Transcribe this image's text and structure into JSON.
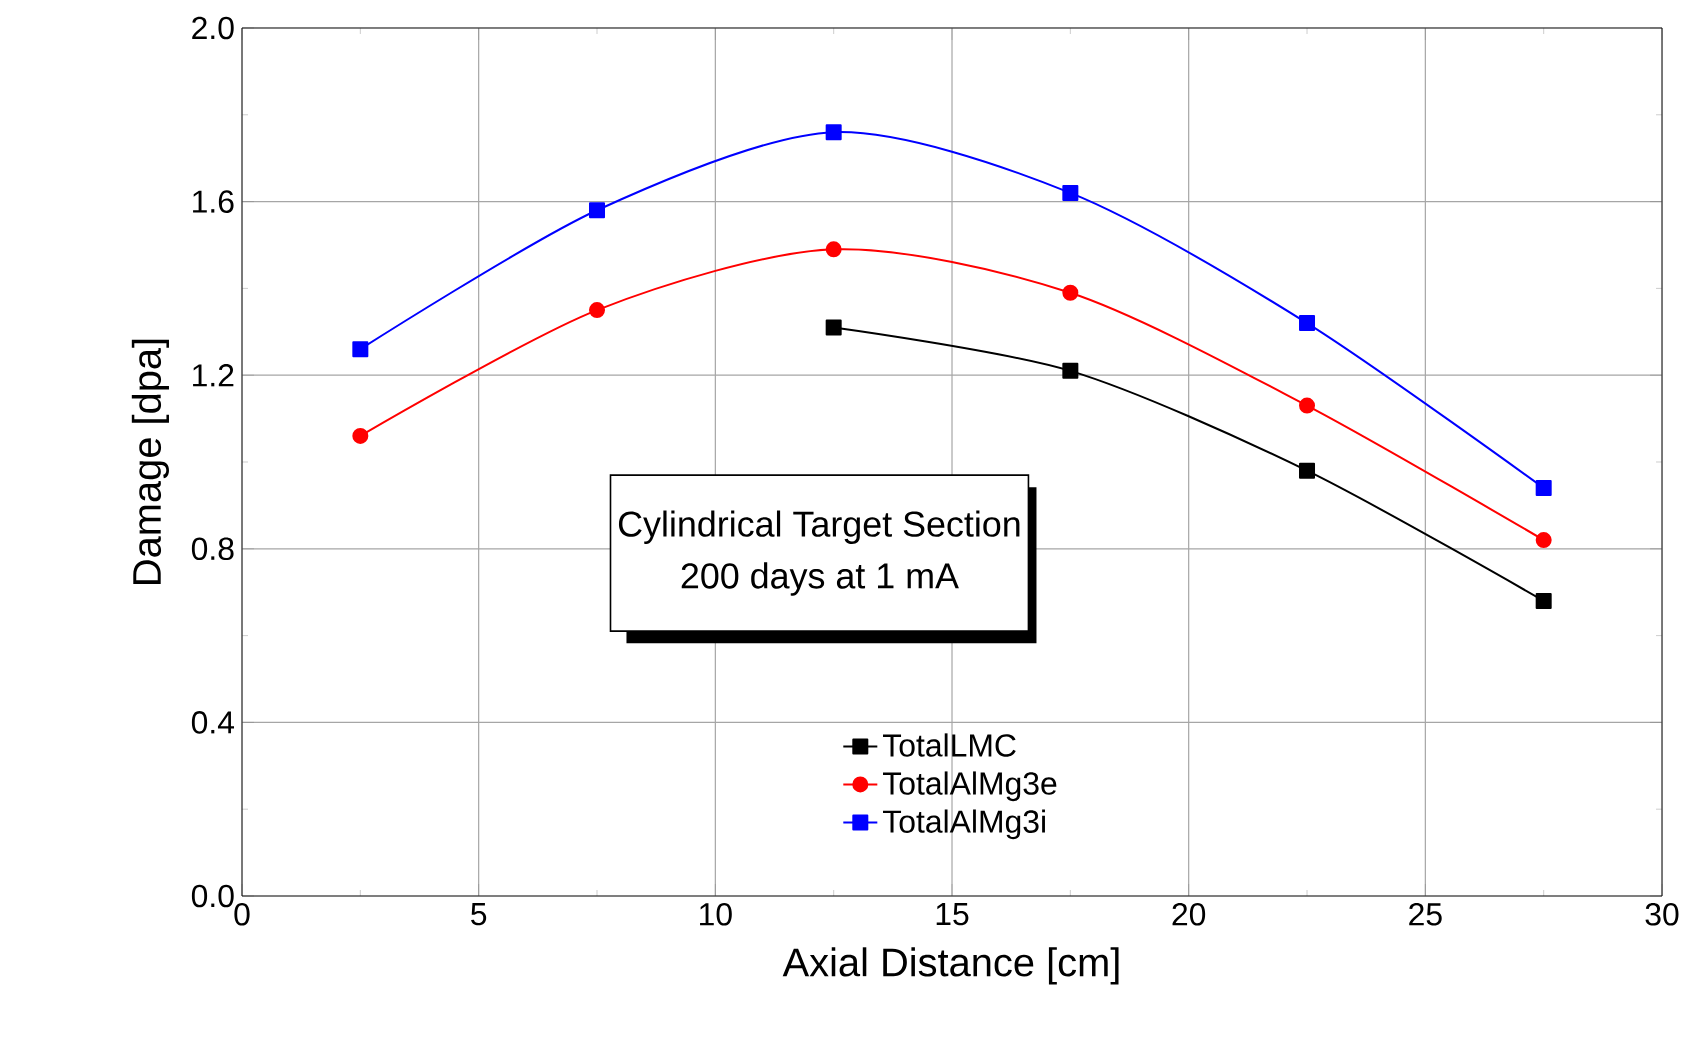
{
  "chart_data": {
    "type": "line",
    "xlabel": "Axial Distance [cm]",
    "ylabel": "Damage [dpa]",
    "x": [
      2.5,
      7.5,
      12.5,
      17.5,
      22.5,
      27.5
    ],
    "series": [
      {
        "name": "TotalLMC",
        "color": "#000000",
        "marker": "square",
        "values": [
          null,
          null,
          1.31,
          1.21,
          0.98,
          0.68
        ]
      },
      {
        "name": "TotalAlMg3e",
        "color": "#ff0000",
        "marker": "circle",
        "values": [
          1.06,
          1.35,
          1.49,
          1.39,
          1.13,
          0.82
        ]
      },
      {
        "name": "TotalAlMg3i",
        "color": "#0000ff",
        "marker": "square",
        "values": [
          1.26,
          1.58,
          1.76,
          1.62,
          1.32,
          0.94
        ]
      }
    ],
    "annotations": [
      "Cylindrical Target Section",
      "200 days at 1 mA"
    ],
    "xlim": [
      0,
      30
    ],
    "xticks": [
      0,
      5,
      10,
      15,
      20,
      25,
      30
    ],
    "ylim": [
      0,
      2
    ],
    "yticks": [
      {
        "value": 0,
        "label": "0.0"
      },
      0.4,
      0.8,
      1.2,
      1.6,
      {
        "value": 2,
        "label": "2.0"
      }
    ],
    "grid": true,
    "legend": "bottom",
    "line_style": "solid"
  }
}
